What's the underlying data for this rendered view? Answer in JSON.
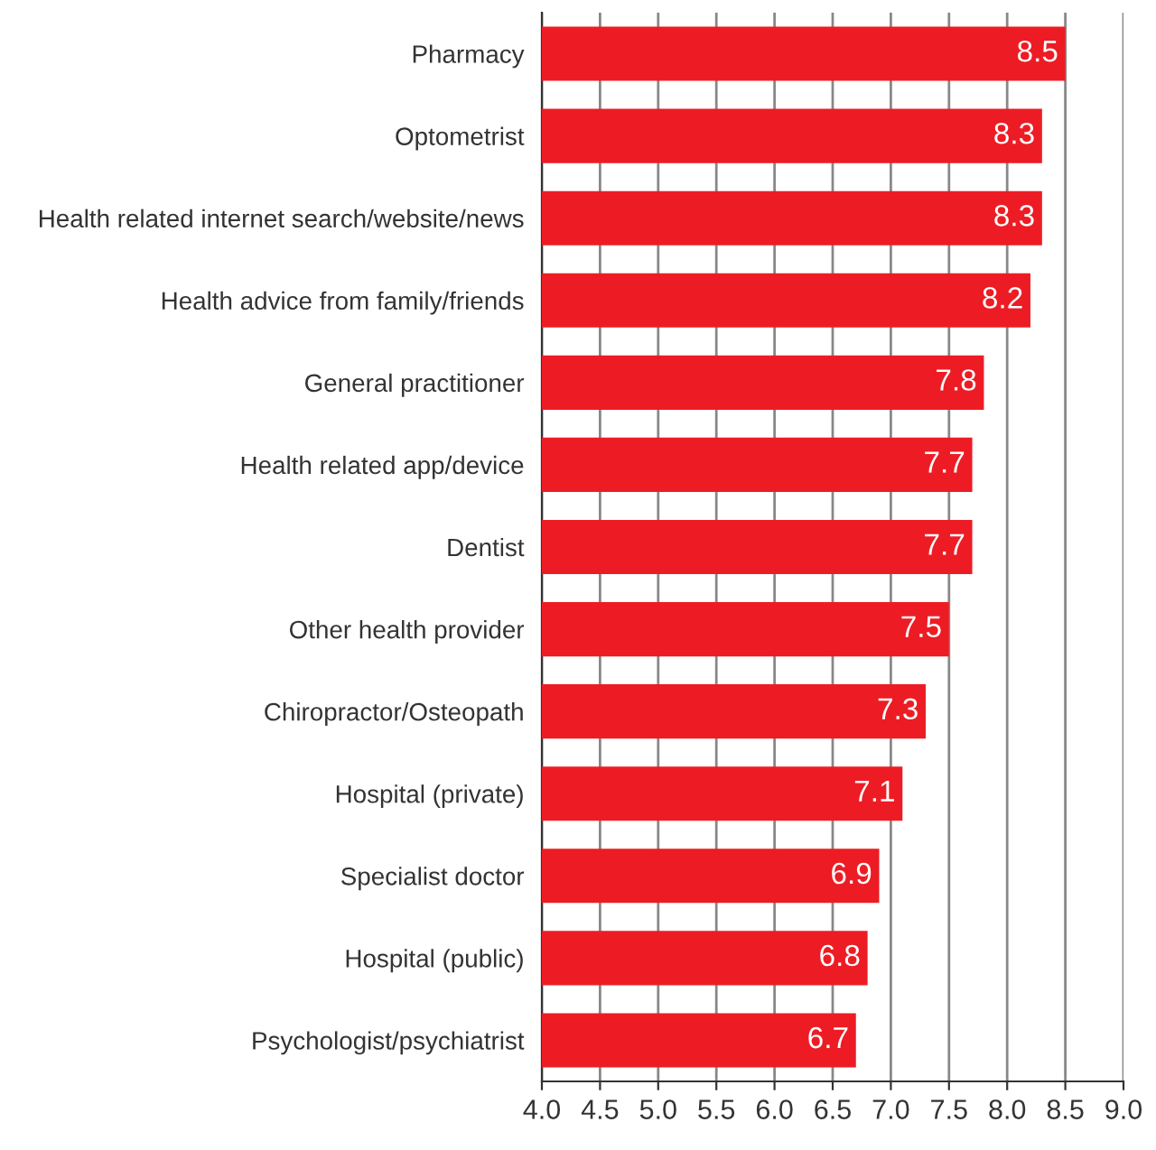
{
  "chart_data": {
    "type": "bar",
    "orientation": "horizontal",
    "categories": [
      "Pharmacy",
      "Optometrist",
      "Health related internet search/website/news",
      "Health advice from family/friends",
      "General practitioner",
      "Health related app/device",
      "Dentist",
      "Other health provider",
      "Chiropractor/Osteopath",
      "Hospital (private)",
      "Specialist doctor",
      "Hospital (public)",
      "Psychologist/psychiatrist"
    ],
    "values": [
      8.5,
      8.3,
      8.3,
      8.2,
      7.8,
      7.7,
      7.7,
      7.5,
      7.3,
      7.1,
      6.9,
      6.8,
      6.7
    ],
    "color": "#ed1c24",
    "xlim": [
      4.0,
      9.0
    ],
    "xticks": [
      {
        "value": 4.0,
        "label": "4.0"
      },
      {
        "value": 4.5,
        "label": "4.5"
      },
      {
        "value": 5.0,
        "label": "5.0"
      },
      {
        "value": 5.5,
        "label": "5.5"
      },
      {
        "value": 6.0,
        "label": "6.0"
      },
      {
        "value": 6.5,
        "label": "6.5"
      },
      {
        "value": 7.0,
        "label": "7.0"
      },
      {
        "value": 7.5,
        "label": "7.5"
      },
      {
        "value": 8.0,
        "label": "8.0"
      },
      {
        "value": 8.5,
        "label": "8.5"
      },
      {
        "value": 9.0,
        "label": "9.0"
      }
    ],
    "grid": "x",
    "data_labels": true
  }
}
